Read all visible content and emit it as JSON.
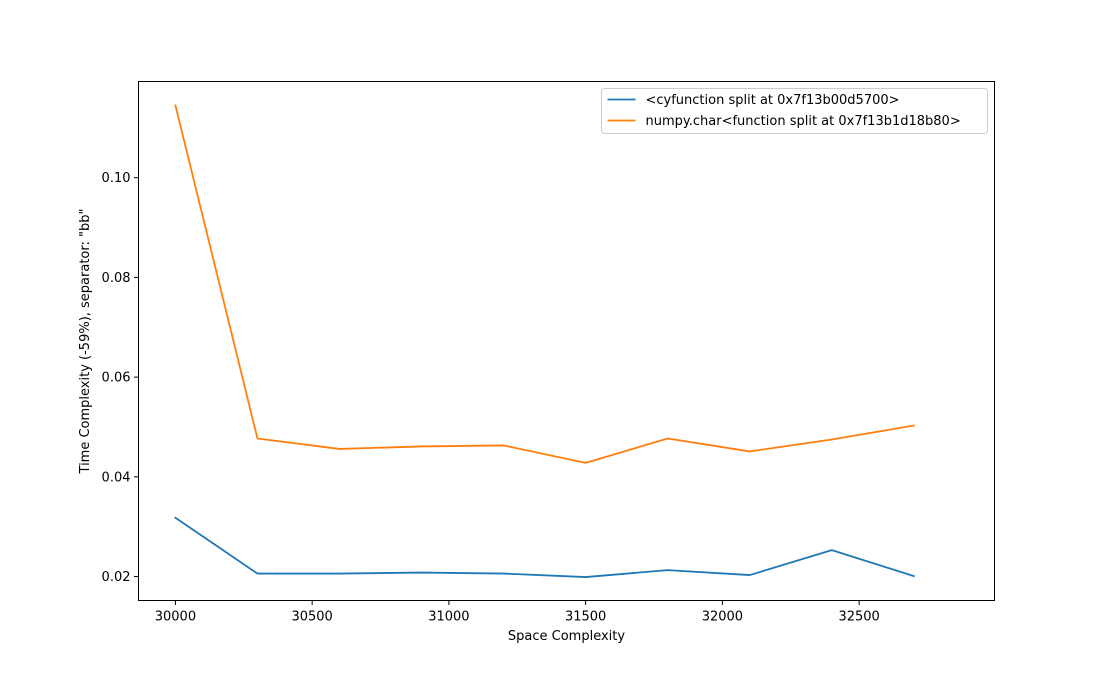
{
  "chart_data": {
    "type": "line",
    "title": "",
    "xlabel": "Space Complexity",
    "ylabel": "Time Complexity (-59%), separator: \"bb\"",
    "xlim": [
      29865,
      32995
    ],
    "ylim": [
      0.0152,
      0.1193
    ],
    "x_ticks": [
      30000,
      30500,
      31000,
      31500,
      32000,
      32500
    ],
    "x_tick_labels": [
      "30000",
      "30500",
      "31000",
      "31500",
      "32000",
      "32500"
    ],
    "y_ticks": [
      0.02,
      0.04,
      0.06,
      0.08,
      0.1
    ],
    "y_tick_labels": [
      "0.02",
      "0.04",
      "0.06",
      "0.08",
      "0.10"
    ],
    "grid": false,
    "legend_position": "upper-right",
    "x": [
      30000,
      30300,
      30600,
      30900,
      31200,
      31500,
      31800,
      32100,
      32400,
      32700
    ],
    "series": [
      {
        "name": "<cyfunction split at 0x7f13b00d5700>",
        "color": "#1f77b4",
        "values": [
          0.0318,
          0.0206,
          0.0206,
          0.0208,
          0.0206,
          0.0199,
          0.0213,
          0.0203,
          0.0253,
          0.0201
        ]
      },
      {
        "name": "numpy.char<function split at 0x7f13b1d18b80>",
        "color": "#ff7f0e",
        "values": [
          0.1145,
          0.0477,
          0.0456,
          0.0461,
          0.0463,
          0.0428,
          0.0477,
          0.0451,
          0.0475,
          0.0503
        ]
      }
    ]
  }
}
